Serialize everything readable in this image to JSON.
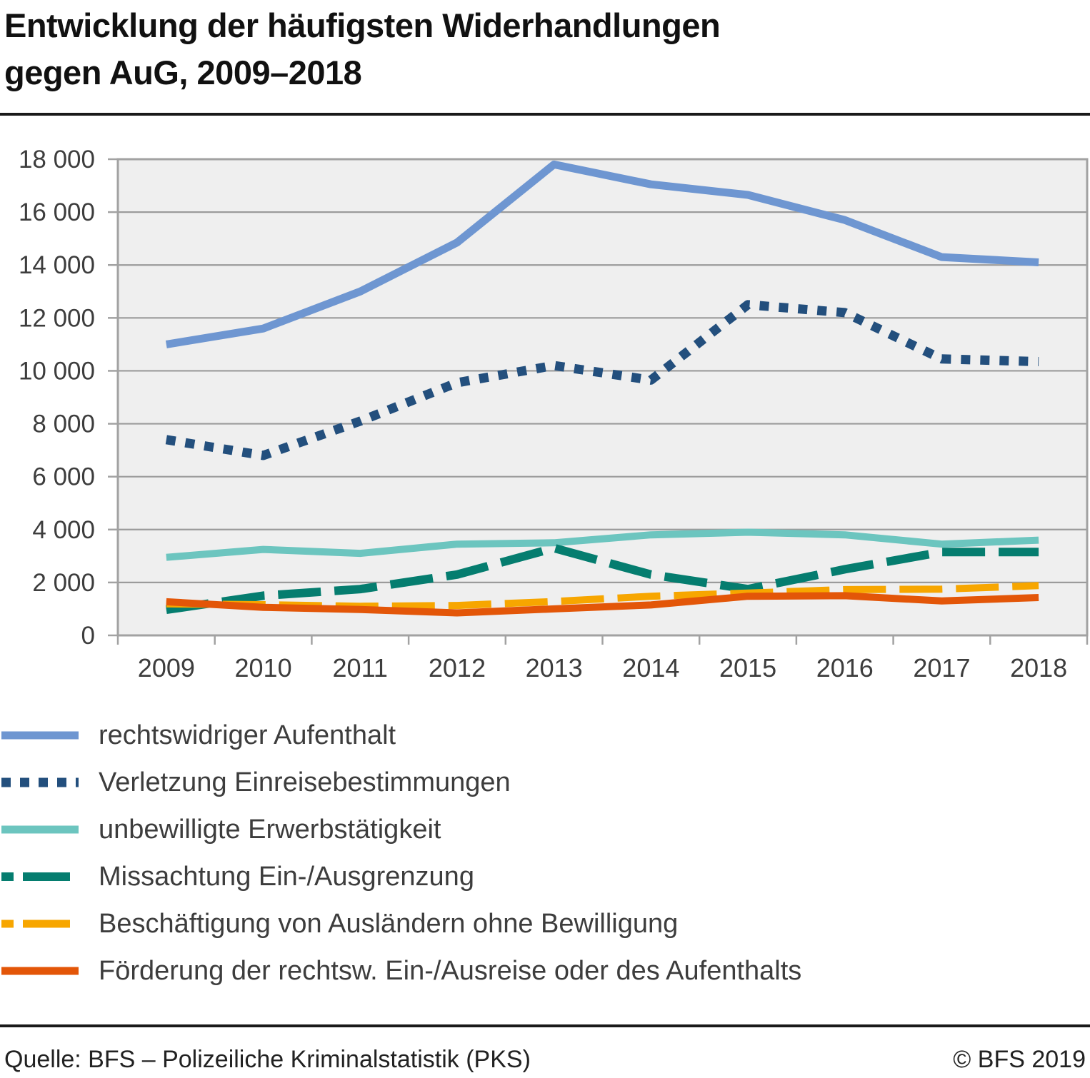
{
  "title": {
    "line1": "Entwicklung der häufigsten Widerhandlungen",
    "line2": "gegen AuG, 2009–2018"
  },
  "footer": {
    "source": "Quelle: BFS – Polizeiliche Kriminalstatistik (PKS)",
    "copyright": "© BFS 2019"
  },
  "colors": {
    "plot_bg": "#efefef",
    "grid": "#9b9b9b",
    "frame": "#a2a2a2",
    "title_text": "#111111",
    "axis_text": "#3d3d3d",
    "legend_text": "#3d3d3d"
  },
  "chart_data": {
    "type": "line",
    "title": "Entwicklung der häufigsten Widerhandlungen gegen AuG, 2009–2018",
    "x_labels": [
      "2009",
      "2010",
      "2011",
      "2012",
      "2013",
      "2014",
      "2015",
      "2016",
      "2017",
      "2018"
    ],
    "y_tick_labels": [
      "0",
      "2 000",
      "4 000",
      "6 000",
      "8 000",
      "10 000",
      "12 000",
      "14 000",
      "16 000",
      "18 000"
    ],
    "ylim": [
      0,
      18000
    ],
    "y_step": 2000,
    "grid": true,
    "legend_position": "bottom-left",
    "series": [
      {
        "name": "rechtswidriger Aufenthalt",
        "color": "#6e96d1",
        "style": "solid",
        "width": 11,
        "values": [
          11000,
          11600,
          13000,
          14850,
          17800,
          17050,
          16650,
          15700,
          14300,
          14100
        ]
      },
      {
        "name": "Verletzung Einreisebestimmungen",
        "color": "#234f7d",
        "style": "dotted",
        "width": 13,
        "values": [
          7400,
          6800,
          8100,
          9550,
          10200,
          9650,
          12500,
          12200,
          10450,
          10350
        ]
      },
      {
        "name": "unbewilligte Erwerbstätigkeit",
        "color": "#6cc5bf",
        "style": "solid",
        "width": 10,
        "values": [
          2950,
          3250,
          3100,
          3450,
          3500,
          3800,
          3900,
          3800,
          3450,
          3600
        ]
      },
      {
        "name": "Missachtung Ein-/Ausgrenzung",
        "color": "#057d6f",
        "style": "dashed",
        "width": 12,
        "values": [
          970,
          1500,
          1750,
          2300,
          3300,
          2300,
          1750,
          2500,
          3150,
          3150
        ]
      },
      {
        "name": "Beschäftigung von Ausländern ohne Bewilligung",
        "color": "#f7a600",
        "style": "dashed",
        "width": 10,
        "values": [
          1190,
          1160,
          1100,
          1130,
          1280,
          1480,
          1600,
          1730,
          1750,
          1880
        ]
      },
      {
        "name": "Förderung der rechtsw. Ein-/Ausreise oder des Aufenthalts",
        "color": "#e35608",
        "style": "solid",
        "width": 10,
        "values": [
          1270,
          1060,
          980,
          850,
          1000,
          1150,
          1480,
          1500,
          1300,
          1430
        ]
      }
    ]
  }
}
